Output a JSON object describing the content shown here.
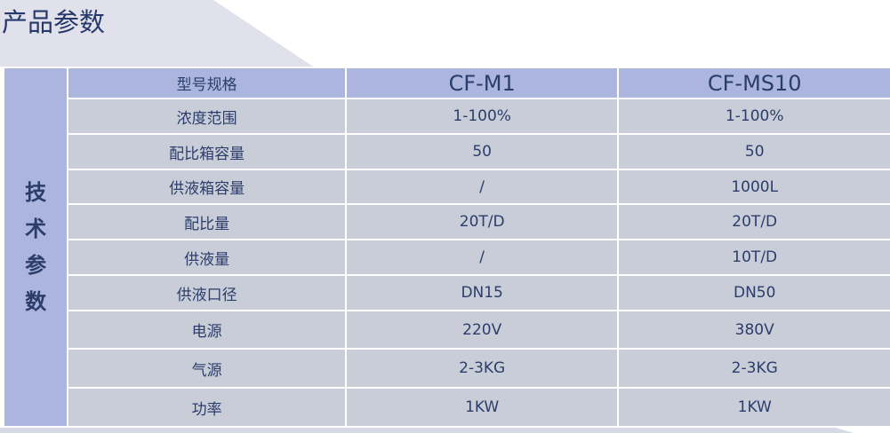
{
  "title": "产品参数",
  "side_label": [
    "技",
    "术",
    "参",
    "数"
  ],
  "header": {
    "label": "型号规格",
    "models": [
      "CF-M1",
      "CF-MS10"
    ]
  },
  "rows": [
    {
      "label": "浓度范围",
      "values": [
        "1-100%",
        "1-100%"
      ]
    },
    {
      "label": "配比箱容量",
      "values": [
        "50",
        "50"
      ]
    },
    {
      "label": "供液箱容量",
      "values": [
        "/",
        "1000L"
      ]
    },
    {
      "label": "配比量",
      "values": [
        "20T/D",
        "20T/D"
      ]
    },
    {
      "label": "供液量",
      "values": [
        "/",
        "10T/D"
      ]
    },
    {
      "label": "供液口径",
      "values": [
        "DN15",
        "DN50"
      ]
    },
    {
      "label": "电源",
      "values": [
        "220V",
        "380V"
      ]
    },
    {
      "label": "气源",
      "values": [
        "2-3KG",
        "2-3KG"
      ]
    },
    {
      "label": "功率",
      "values": [
        "1KW",
        "1KW"
      ]
    }
  ]
}
